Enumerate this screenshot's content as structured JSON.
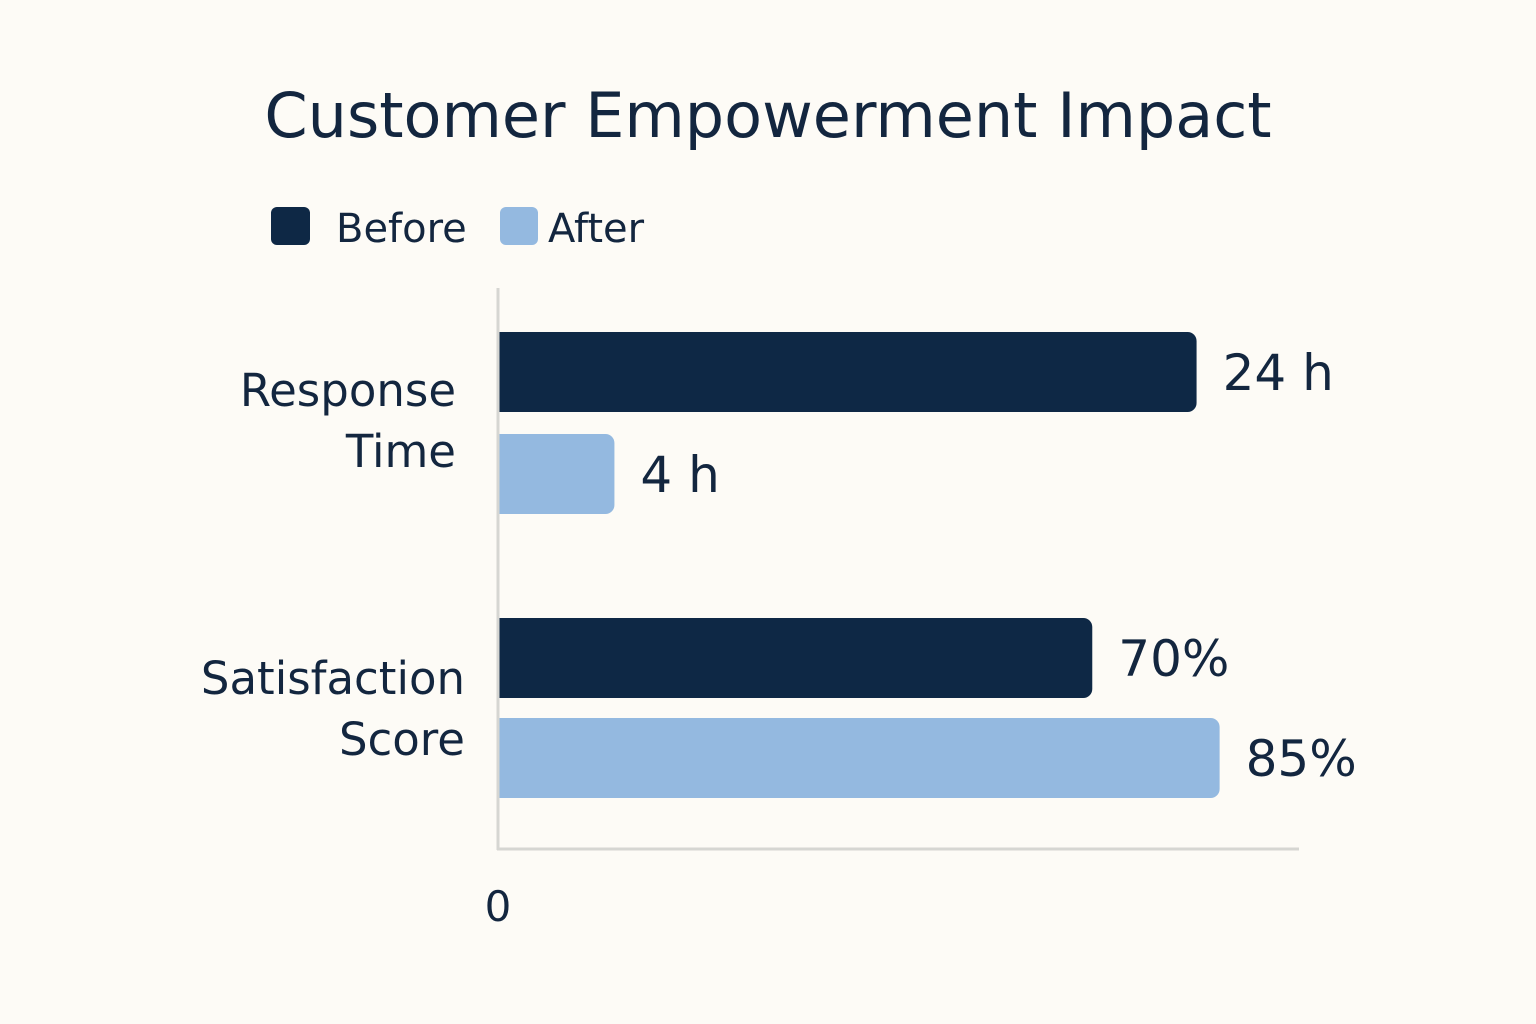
{
  "chart_data": {
    "type": "bar",
    "orientation": "horizontal",
    "title": "Customer Empowerment Impact",
    "xlabel": "",
    "ylabel": "",
    "x_tick_labels": [
      "0"
    ],
    "grid": false,
    "legend_position": "top-left",
    "categories": [
      {
        "label_lines": [
          "Response",
          "Time"
        ]
      },
      {
        "label_lines": [
          "Satisfaction",
          "Score"
        ]
      }
    ],
    "series": [
      {
        "name": "Before",
        "color": "#0e2845",
        "values": [
          24,
          70
        ],
        "value_labels": [
          "24 h",
          "70%"
        ]
      },
      {
        "name": "After",
        "color": "#94b9e0",
        "values": [
          4,
          85
        ],
        "value_labels": [
          "4 h",
          "85%"
        ]
      }
    ],
    "category_scales": [
      {
        "unit": "h",
        "max": 28
      },
      {
        "unit": "%",
        "max": 96
      }
    ]
  }
}
